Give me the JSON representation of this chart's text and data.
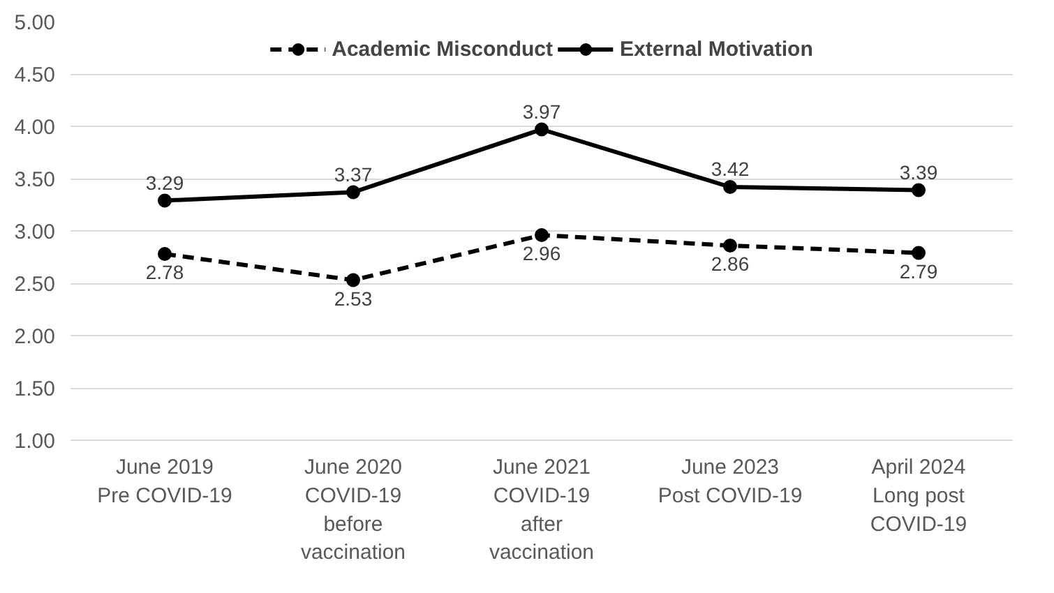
{
  "chart_data": {
    "type": "line",
    "categories": [
      "June 2019\nPre COVID-19",
      "June 2020\nCOVID-19\nbefore\nvaccination",
      "June 2021\nCOVID-19\nafter\nvaccination",
      "June 2023\nPost COVID-19",
      "April 2024\nLong post\nCOVID-19"
    ],
    "series": [
      {
        "name": "Academic Misconduct",
        "color": "#000000",
        "line_style": "dashed",
        "values": [
          2.78,
          2.53,
          2.96,
          2.86,
          2.79
        ]
      },
      {
        "name": "External Motivation",
        "color": "#000000",
        "line_style": "solid",
        "values": [
          3.29,
          3.37,
          3.97,
          3.42,
          3.39
        ]
      }
    ],
    "ylim": [
      1,
      5
    ],
    "yticks": [
      {
        "value": 1,
        "label": "1.00"
      },
      {
        "value": 1.5,
        "label": "1.50"
      },
      {
        "value": 2,
        "label": "2.00"
      },
      {
        "value": 2.5,
        "label": "2.50"
      },
      {
        "value": 3,
        "label": "3.00"
      },
      {
        "value": 3.5,
        "label": "3.50"
      },
      {
        "value": 4,
        "label": "4.00"
      },
      {
        "value": 4.5,
        "label": "4.50"
      },
      {
        "value": 5,
        "label": "5.00"
      }
    ],
    "grid": "y",
    "legend": "top",
    "marker": "circle",
    "data_labels": true
  }
}
